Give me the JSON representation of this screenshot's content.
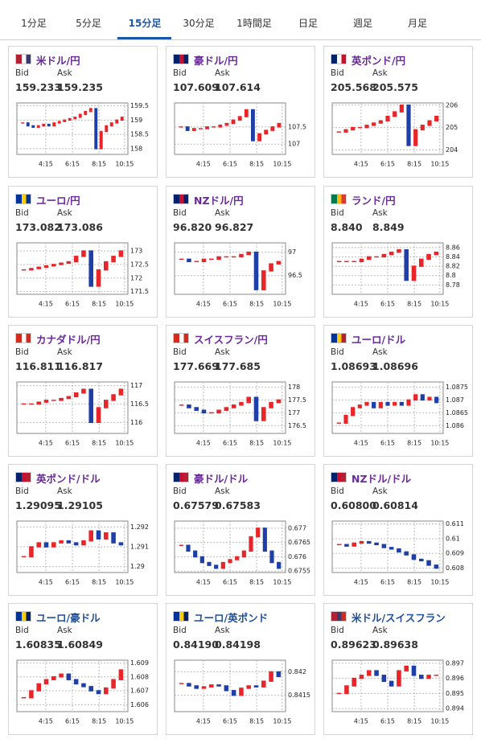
{
  "tabs": [
    "1分足",
    "5分足",
    "15分足",
    "30分足",
    "1時間足",
    "日足",
    "週足",
    "月足"
  ],
  "tiles": [
    {
      "title": "米ドル/円",
      "color": "#6a2a9a",
      "bid_label": "Bid",
      "ask_label": "Ask",
      "bid": "159.233",
      "ask": "159.235",
      "xticks": [
        "4:15",
        "6:15",
        "8:15",
        "10:15"
      ],
      "ylim": [
        157.8,
        159.6
      ],
      "yticks": [
        158,
        158.5,
        159,
        159.5
      ],
      "values": [
        158.9,
        158.8,
        158.75,
        158.8,
        158.85,
        158.8,
        158.9,
        158.95,
        159.0,
        159.05,
        159.1,
        159.2,
        159.3,
        159.4,
        158.0,
        158.6,
        158.8,
        158.9,
        159.0,
        159.1
      ]
    },
    {
      "title": "豪ドル/円",
      "color": "#6a2a9a",
      "bid_label": "Bid",
      "ask_label": "Ask",
      "bid": "107.609",
      "ask": "107.614",
      "xticks": [
        "4:15",
        "6:15",
        "8:15",
        "10:15"
      ],
      "ylim": [
        106.7,
        108.2
      ],
      "yticks": [
        107,
        107.5
      ],
      "values": [
        107.5,
        107.4,
        107.45,
        107.45,
        107.5,
        107.5,
        107.55,
        107.6,
        107.7,
        107.8,
        108.0,
        107.1,
        107.3,
        107.4,
        107.5,
        107.6
      ]
    },
    {
      "title": "英ポンド/円",
      "color": "#6a2a9a",
      "bid_label": "Bid",
      "ask_label": "Ask",
      "bid": "205.568",
      "ask": "205.575",
      "xticks": [
        "4:15",
        "6:15",
        "8:15",
        "10:15"
      ],
      "ylim": [
        203.8,
        206.1
      ],
      "yticks": [
        204,
        205,
        206
      ],
      "values": [
        204.8,
        204.9,
        205.0,
        205.0,
        205.1,
        205.2,
        205.3,
        205.5,
        205.7,
        206.0,
        204.2,
        204.9,
        205.1,
        205.3,
        205.5
      ]
    },
    {
      "title": "ユーロ/円",
      "color": "#6a2a9a",
      "bid_label": "Bid",
      "ask_label": "Ask",
      "bid": "173.082",
      "ask": "173.086",
      "xticks": [
        "4:15",
        "6:15",
        "8:15",
        "10:15"
      ],
      "ylim": [
        171.4,
        173.3
      ],
      "yticks": [
        171.5,
        172,
        172.5,
        173
      ],
      "values": [
        172.3,
        172.35,
        172.4,
        172.45,
        172.5,
        172.55,
        172.6,
        172.8,
        173.0,
        171.7,
        172.3,
        172.6,
        172.8,
        173.0
      ]
    },
    {
      "title": "NZドル/円",
      "color": "#6a2a9a",
      "bid_label": "Bid",
      "ask_label": "Ask",
      "bid": "96.820",
      "ask": "96.827",
      "xticks": [
        "4:15",
        "6:15",
        "8:15",
        "10:15"
      ],
      "ylim": [
        96.1,
        97.2
      ],
      "yticks": [
        96.5,
        97
      ],
      "values": [
        96.85,
        96.8,
        96.8,
        96.85,
        96.85,
        96.9,
        96.9,
        96.9,
        96.95,
        97.0,
        96.2,
        96.6,
        96.75,
        96.8
      ]
    },
    {
      "title": "ランド/円",
      "color": "#6a2a9a",
      "bid_label": "Bid",
      "ask_label": "Ask",
      "bid": "8.840",
      "ask": "8.849",
      "xticks": [
        "4:15",
        "6:15",
        "8:15",
        "10:15"
      ],
      "ylim": [
        8.76,
        8.87
      ],
      "yticks": [
        8.78,
        8.8,
        8.82,
        8.84,
        8.86
      ],
      "values": [
        8.83,
        8.83,
        8.83,
        8.835,
        8.84,
        8.84,
        8.845,
        8.85,
        8.855,
        8.79,
        8.82,
        8.835,
        8.845,
        8.85
      ]
    },
    {
      "title": "カナダドル/円",
      "color": "#6a2a9a",
      "bid_label": "Bid",
      "ask_label": "Ask",
      "bid": "116.811",
      "ask": "116.817",
      "xticks": [
        "4:15",
        "6:15",
        "8:15",
        "10:15"
      ],
      "ylim": [
        115.7,
        117.1
      ],
      "yticks": [
        116,
        116.5,
        117
      ],
      "values": [
        116.5,
        116.5,
        116.55,
        116.6,
        116.6,
        116.65,
        116.7,
        116.8,
        116.9,
        116.0,
        116.4,
        116.6,
        116.75,
        116.9
      ]
    },
    {
      "title": "スイスフラン/円",
      "color": "#6a2a9a",
      "bid_label": "Bid",
      "ask_label": "Ask",
      "bid": "177.669",
      "ask": "177.685",
      "xticks": [
        "4:15",
        "6:15",
        "8:15",
        "10:15"
      ],
      "ylim": [
        176.2,
        178.2
      ],
      "yticks": [
        176.5,
        177,
        177.5,
        178
      ],
      "values": [
        177.3,
        177.2,
        177.1,
        177.0,
        177.0,
        177.1,
        177.2,
        177.3,
        177.4,
        177.6,
        176.7,
        177.2,
        177.4,
        177.5
      ]
    },
    {
      "title": "ユーロ/ドル",
      "color": "#6a2a9a",
      "bid_label": "Bid",
      "ask_label": "Ask",
      "bid": "1.08693",
      "ask": "1.08696",
      "xticks": [
        "4:15",
        "6:15",
        "8:15",
        "10:15"
      ],
      "ylim": [
        1.0857,
        1.0877
      ],
      "yticks": [
        1.086,
        1.0865,
        1.087,
        1.0875
      ],
      "values": [
        1.0861,
        1.0864,
        1.0867,
        1.0868,
        1.0869,
        1.0867,
        1.0869,
        1.0868,
        1.0869,
        1.0868,
        1.087,
        1.0872,
        1.087,
        1.0871,
        1.0869
      ]
    },
    {
      "title": "英ポンド/ドル",
      "color": "#6a2a9a",
      "bid_label": "Bid",
      "ask_label": "Ask",
      "bid": "1.29095",
      "ask": "1.29105",
      "xticks": [
        "4:15",
        "6:15",
        "8:15",
        "10:15"
      ],
      "ylim": [
        1.2897,
        1.2923
      ],
      "yticks": [
        1.29,
        1.291,
        1.292
      ],
      "values": [
        1.2905,
        1.291,
        1.2912,
        1.291,
        1.2912,
        1.2913,
        1.2912,
        1.2911,
        1.2913,
        1.2918,
        1.2914,
        1.2917,
        1.2912,
        1.2911
      ]
    },
    {
      "title": "豪ドル/ドル",
      "color": "#6a2a9a",
      "bid_label": "Bid",
      "ask_label": "Ask",
      "bid": "0.67579",
      "ask": "0.67583",
      "xticks": [
        "4:15",
        "6:15",
        "8:15",
        "10:15"
      ],
      "ylim": [
        0.67545,
        0.67725
      ],
      "yticks": [
        0.6755,
        0.676,
        0.6765,
        0.677
      ],
      "values": [
        0.6764,
        0.6762,
        0.676,
        0.6758,
        0.6757,
        0.6756,
        0.6758,
        0.6759,
        0.676,
        0.6762,
        0.6767,
        0.677,
        0.6762,
        0.6758,
        0.6756
      ]
    },
    {
      "title": "NZドル/ドル",
      "color": "#6a2a9a",
      "bid_label": "Bid",
      "ask_label": "Ask",
      "bid": "0.60800",
      "ask": "0.60814",
      "xticks": [
        "4:15",
        "6:15",
        "8:15",
        "10:15"
      ],
      "ylim": [
        0.6077,
        0.6112
      ],
      "yticks": [
        0.608,
        0.609,
        0.61,
        0.611
      ],
      "values": [
        0.6096,
        0.6095,
        0.6097,
        0.6098,
        0.6097,
        0.6096,
        0.6094,
        0.6093,
        0.6091,
        0.6089,
        0.6086,
        0.6085,
        0.6082,
        0.608
      ]
    },
    {
      "title": "ユーロ/豪ドル",
      "color": "#1f4e9a",
      "bid_label": "Bid",
      "ask_label": "Ask",
      "bid": "1.60835",
      "ask": "1.60849",
      "xticks": [
        "4:15",
        "6:15",
        "8:15",
        "10:15"
      ],
      "ylim": [
        1.6055,
        1.6092
      ],
      "yticks": [
        1.606,
        1.607,
        1.608,
        1.609
      ],
      "values": [
        1.6065,
        1.607,
        1.6075,
        1.6078,
        1.608,
        1.6082,
        1.6078,
        1.6075,
        1.6073,
        1.607,
        1.6068,
        1.6072,
        1.6078,
        1.6085
      ]
    },
    {
      "title": "ユーロ/英ポンド",
      "color": "#1f4e9a",
      "bid_label": "Bid",
      "ask_label": "Ask",
      "bid": "0.84190",
      "ask": "0.84198",
      "xticks": [
        "4:15",
        "6:15",
        "8:15",
        "10:15"
      ],
      "ylim": [
        0.84115,
        0.84225
      ],
      "yticks": [
        0.8415,
        0.842
      ],
      "values": [
        0.84175,
        0.8417,
        0.84165,
        0.84168,
        0.84172,
        0.8417,
        0.8416,
        0.8415,
        0.84165,
        0.8417,
        0.84168,
        0.8418,
        0.842,
        0.8419
      ]
    },
    {
      "title": "米ドル/スイスフラン",
      "color": "#1f4e9a",
      "bid_label": "Bid",
      "ask_label": "Ask",
      "bid": "0.89623",
      "ask": "0.89638",
      "xticks": [
        "4:15",
        "6:15",
        "8:15",
        "10:15"
      ],
      "ylim": [
        0.8938,
        0.8972
      ],
      "yticks": [
        0.894,
        0.895,
        0.896,
        0.897
      ],
      "values": [
        0.895,
        0.8955,
        0.896,
        0.8962,
        0.8965,
        0.8962,
        0.8958,
        0.8955,
        0.8965,
        0.8968,
        0.8962,
        0.896,
        0.8962,
        0.8962
      ]
    }
  ]
}
